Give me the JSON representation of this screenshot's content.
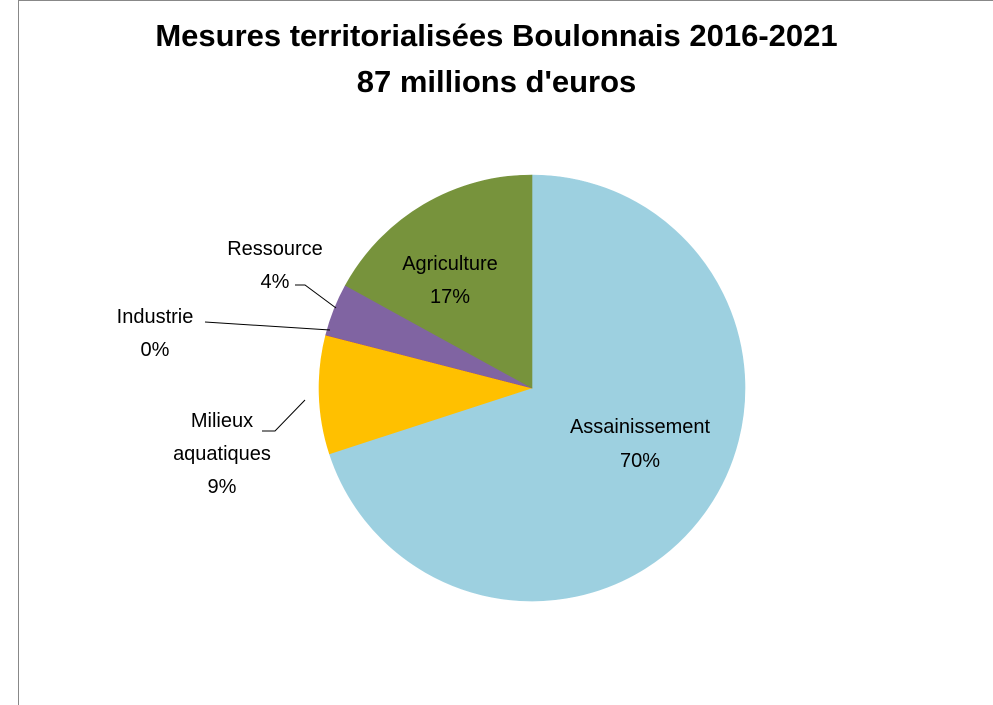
{
  "chart_data": {
    "type": "pie",
    "title": "Mesures territorialisées Boulonnais 2016-2021",
    "subtitle": "87 millions d'euros",
    "categories": [
      "Assainissement",
      "Milieux aquatiques",
      "Industrie",
      "Ressource",
      "Agriculture"
    ],
    "values": [
      70,
      9,
      0,
      4,
      17
    ],
    "value_labels": [
      "70%",
      "9%",
      "0%",
      "4%",
      "17%"
    ],
    "colors": [
      "#9dd0e0",
      "#ffc000",
      "#ff0000",
      "#8064a2",
      "#77933c"
    ]
  }
}
